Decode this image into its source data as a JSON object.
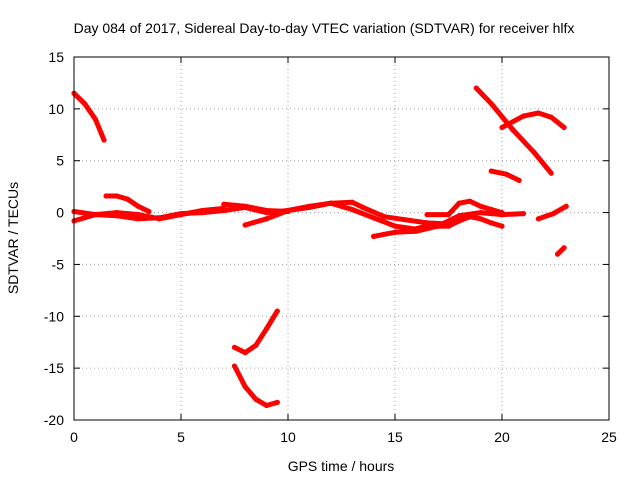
{
  "chart_data": {
    "type": "scatter",
    "title": "Day 084 of 2017, Sidereal Day-to-day VTEC variation (SDTVAR) for receiver hlfx",
    "xlabel": "GPS time / hours",
    "ylabel": "SDTVAR / TECUs",
    "xlim": [
      0,
      25
    ],
    "ylim": [
      -20,
      15
    ],
    "xticks": [
      "0",
      "5",
      "10",
      "15",
      "20",
      "25"
    ],
    "yticks": [
      "15",
      "10",
      "5",
      "0",
      "-5",
      "-10",
      "-15",
      "-20"
    ],
    "grid": true,
    "color": "#ff0000",
    "series": [
      {
        "x": [
          0.0,
          0.5,
          1.0,
          1.4
        ],
        "y": [
          11.5,
          10.5,
          9.0,
          7.0
        ]
      },
      {
        "x": [
          0.0,
          1.0,
          2.0,
          3.0,
          4.0,
          5.0,
          6.0,
          7.0,
          8.0,
          9.0,
          10.0,
          11.0,
          12.0,
          13.0,
          13.5,
          14.5,
          15.5,
          16.5,
          17.5,
          18.0
        ],
        "y": [
          -0.8,
          -0.2,
          -0.3,
          -0.6,
          -0.5,
          -0.1,
          0.0,
          0.2,
          0.5,
          0.0,
          0.2,
          0.5,
          0.9,
          1.0,
          0.5,
          -0.4,
          -0.7,
          -1.0,
          -1.1,
          -0.4
        ]
      },
      {
        "x": [
          0.0,
          1.0,
          2.0,
          3.0,
          4.0,
          5.0,
          6.0,
          7.0
        ],
        "y": [
          0.1,
          -0.2,
          0.0,
          -0.2,
          -0.6,
          -0.2,
          0.2,
          0.4
        ]
      },
      {
        "x": [
          1.5,
          2.0,
          2.5,
          3.0,
          3.5
        ],
        "y": [
          1.6,
          1.6,
          1.3,
          0.6,
          0.1
        ]
      },
      {
        "x": [
          7.0,
          8.0,
          9.0,
          10.0
        ],
        "y": [
          0.8,
          0.6,
          0.2,
          0.1
        ]
      },
      {
        "x": [
          8.0,
          9.0,
          10.0,
          11.0,
          12.0,
          13.0,
          14.0,
          15.0,
          16.0
        ],
        "y": [
          -1.2,
          -0.6,
          0.2,
          0.6,
          0.9,
          0.3,
          -0.5,
          -1.3,
          -1.6
        ]
      },
      {
        "x": [
          14.0,
          15.0,
          16.0,
          17.0,
          18.0,
          19.0,
          20.0,
          21.0
        ],
        "y": [
          -2.3,
          -1.9,
          -1.8,
          -1.3,
          -0.3,
          0.0,
          -0.2,
          -0.1
        ]
      },
      {
        "x": [
          15.5,
          16.5,
          17.5,
          18.0,
          18.5,
          19.0,
          19.5,
          20.0
        ],
        "y": [
          -1.8,
          -1.3,
          -1.3,
          -0.8,
          -0.4,
          -0.6,
          -1.0,
          -1.3
        ]
      },
      {
        "x": [
          16.5,
          17.5,
          18.0,
          18.5,
          19.0,
          19.5,
          20.0
        ],
        "y": [
          -0.2,
          -0.2,
          0.9,
          1.1,
          0.6,
          0.3,
          0.0
        ]
      },
      {
        "x": [
          18.8,
          19.5,
          20.5,
          21.5,
          22.3
        ],
        "y": [
          12.0,
          10.5,
          8.0,
          5.8,
          3.8
        ]
      },
      {
        "x": [
          20.0,
          21.0,
          21.7,
          22.3,
          22.9
        ],
        "y": [
          8.2,
          9.3,
          9.6,
          9.2,
          8.2
        ]
      },
      {
        "x": [
          19.5,
          20.2,
          20.8
        ],
        "y": [
          4.0,
          3.7,
          3.1
        ]
      },
      {
        "x": [
          21.7,
          22.4,
          23.0
        ],
        "y": [
          -0.6,
          -0.1,
          0.6
        ]
      },
      {
        "x": [
          22.6,
          22.9
        ],
        "y": [
          -4.0,
          -3.4
        ]
      },
      {
        "x": [
          7.5,
          8.0,
          8.5,
          9.0,
          9.5
        ],
        "y": [
          -13.0,
          -13.5,
          -12.8,
          -11.2,
          -9.5
        ]
      },
      {
        "x": [
          7.5,
          8.0,
          8.5,
          9.0,
          9.5
        ],
        "y": [
          -14.8,
          -16.8,
          -18.0,
          -18.6,
          -18.3
        ]
      }
    ]
  }
}
